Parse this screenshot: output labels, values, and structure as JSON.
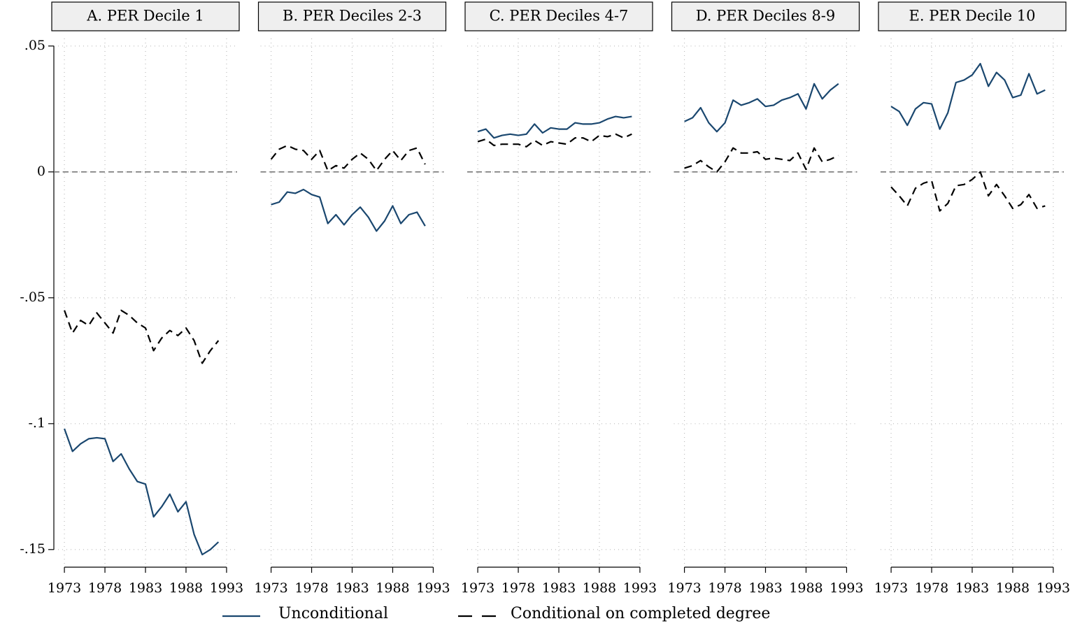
{
  "chart_data": [
    {
      "type": "line",
      "title": "A. PER Decile 1",
      "x": [
        1973,
        1974,
        1975,
        1976,
        1977,
        1978,
        1979,
        1980,
        1981,
        1982,
        1983,
        1984,
        1985,
        1986,
        1987,
        1988,
        1989,
        1990,
        1991,
        1992
      ],
      "xlim": [
        1971.7,
        1994.3
      ],
      "xticks": [
        1973,
        1978,
        1983,
        1988,
        1993
      ],
      "ylim": [
        -0.157,
        0.053
      ],
      "yticks": [
        {
          "value": 0.05,
          "label": ".05"
        },
        0,
        {
          "value": -0.05,
          "label": "-.05"
        },
        {
          "value": -0.1,
          "label": "-.1"
        },
        {
          "value": -0.15,
          "label": "-.15"
        }
      ],
      "grid": true,
      "hline": 0,
      "series": [
        {
          "name": "Unconditional",
          "color": "#1a476f",
          "dash": false,
          "values": [
            -0.102,
            -0.111,
            -0.108,
            -0.106,
            -0.1056,
            -0.106,
            -0.115,
            -0.112,
            -0.118,
            -0.123,
            -0.124,
            -0.137,
            -0.133,
            -0.128,
            -0.135,
            -0.131,
            -0.144,
            -0.152,
            -0.15,
            -0.147
          ]
        },
        {
          "name": "Conditional on completed degree",
          "color": "#000000",
          "dash": true,
          "values": [
            -0.055,
            -0.064,
            -0.059,
            -0.061,
            -0.056,
            -0.06,
            -0.064,
            -0.055,
            -0.057,
            -0.06,
            -0.062,
            -0.071,
            -0.066,
            -0.063,
            -0.065,
            -0.062,
            -0.067,
            -0.076,
            -0.071,
            -0.067
          ]
        }
      ]
    },
    {
      "type": "line",
      "title": "B. PER Deciles 2-3",
      "x": [
        1973,
        1974,
        1975,
        1976,
        1977,
        1978,
        1979,
        1980,
        1981,
        1982,
        1983,
        1984,
        1985,
        1986,
        1987,
        1988,
        1989,
        1990,
        1991,
        1992
      ],
      "xlim": [
        1971.7,
        1994.3
      ],
      "xticks": [
        1973,
        1978,
        1983,
        1988,
        1993
      ],
      "ylim": [
        -0.157,
        0.053
      ],
      "grid": true,
      "hline": 0,
      "series": [
        {
          "color": "#1a476f",
          "dash": false,
          "values": [
            -0.013,
            -0.012,
            -0.008,
            -0.0085,
            -0.007,
            -0.009,
            -0.01,
            -0.0205,
            -0.017,
            -0.021,
            -0.017,
            -0.014,
            -0.018,
            -0.0235,
            -0.0195,
            -0.0135,
            -0.0205,
            -0.017,
            -0.016,
            -0.0215
          ]
        },
        {
          "color": "#000000",
          "dash": true,
          "values": [
            0.005,
            0.009,
            0.0105,
            0.009,
            0.0085,
            0.005,
            0.0085,
            0.0005,
            0.0025,
            0.0015,
            0.005,
            0.0075,
            0.005,
            0.0005,
            0.005,
            0.0085,
            0.0045,
            0.0085,
            0.0095,
            0.003
          ]
        }
      ]
    },
    {
      "type": "line",
      "title": "C. PER Deciles 4-7",
      "x": [
        1973,
        1974,
        1975,
        1976,
        1977,
        1978,
        1979,
        1980,
        1981,
        1982,
        1983,
        1984,
        1985,
        1986,
        1987,
        1988,
        1989,
        1990,
        1991,
        1992
      ],
      "xlim": [
        1971.7,
        1994.3
      ],
      "xticks": [
        1973,
        1978,
        1983,
        1988,
        1993
      ],
      "ylim": [
        -0.157,
        0.053
      ],
      "grid": true,
      "hline": 0,
      "series": [
        {
          "color": "#1a476f",
          "dash": false,
          "values": [
            0.016,
            0.017,
            0.0135,
            0.0145,
            0.015,
            0.0145,
            0.015,
            0.019,
            0.0155,
            0.0175,
            0.017,
            0.017,
            0.0195,
            0.019,
            0.019,
            0.0195,
            0.021,
            0.022,
            0.0215,
            0.022
          ]
        },
        {
          "color": "#000000",
          "dash": true,
          "values": [
            0.012,
            0.013,
            0.0105,
            0.011,
            0.011,
            0.011,
            0.01,
            0.0125,
            0.0105,
            0.012,
            0.0115,
            0.011,
            0.0135,
            0.0135,
            0.012,
            0.0145,
            0.014,
            0.015,
            0.0135,
            0.015
          ]
        }
      ]
    },
    {
      "type": "line",
      "title": "D. PER Deciles 8-9",
      "x": [
        1973,
        1974,
        1975,
        1976,
        1977,
        1978,
        1979,
        1980,
        1981,
        1982,
        1983,
        1984,
        1985,
        1986,
        1987,
        1988,
        1989,
        1990,
        1991,
        1992
      ],
      "xlim": [
        1971.7,
        1994.3
      ],
      "xticks": [
        1973,
        1978,
        1983,
        1988,
        1993
      ],
      "ylim": [
        -0.157,
        0.053
      ],
      "grid": true,
      "hline": 0,
      "series": [
        {
          "color": "#1a476f",
          "dash": false,
          "values": [
            0.02,
            0.0215,
            0.0255,
            0.0195,
            0.016,
            0.0195,
            0.0285,
            0.0265,
            0.0275,
            0.029,
            0.026,
            0.0265,
            0.0285,
            0.0295,
            0.031,
            0.025,
            0.035,
            0.029,
            0.0325,
            0.035
          ]
        },
        {
          "color": "#000000",
          "dash": true,
          "values": [
            0.0015,
            0.0025,
            0.0045,
            0.002,
            0.0,
            0.004,
            0.0095,
            0.0075,
            0.0075,
            0.008,
            0.005,
            0.0055,
            0.005,
            0.0045,
            0.0075,
            0.001,
            0.0095,
            0.004,
            0.005,
            0.0065
          ]
        }
      ]
    },
    {
      "type": "line",
      "title": "E. PER Decile 10",
      "x": [
        1973,
        1974,
        1975,
        1976,
        1977,
        1978,
        1979,
        1980,
        1981,
        1982,
        1983,
        1984,
        1985,
        1986,
        1987,
        1988,
        1989,
        1990,
        1991,
        1992
      ],
      "xlim": [
        1971.7,
        1994.3
      ],
      "xticks": [
        1973,
        1978,
        1983,
        1988,
        1993
      ],
      "ylim": [
        -0.157,
        0.053
      ],
      "grid": true,
      "hline": 0,
      "series": [
        {
          "color": "#1a476f",
          "dash": false,
          "values": [
            0.026,
            0.024,
            0.0185,
            0.025,
            0.0275,
            0.027,
            0.017,
            0.0235,
            0.0355,
            0.0365,
            0.0385,
            0.043,
            0.034,
            0.0395,
            0.0365,
            0.0295,
            0.0305,
            0.039,
            0.031,
            0.0325
          ]
        },
        {
          "color": "#000000",
          "dash": true,
          "values": [
            -0.006,
            -0.0095,
            -0.0135,
            -0.0065,
            -0.0045,
            -0.0035,
            -0.0155,
            -0.0125,
            -0.0055,
            -0.005,
            -0.003,
            0.0,
            -0.0095,
            -0.005,
            -0.0095,
            -0.0145,
            -0.013,
            -0.009,
            -0.0145,
            -0.0135
          ]
        }
      ]
    }
  ]
}
